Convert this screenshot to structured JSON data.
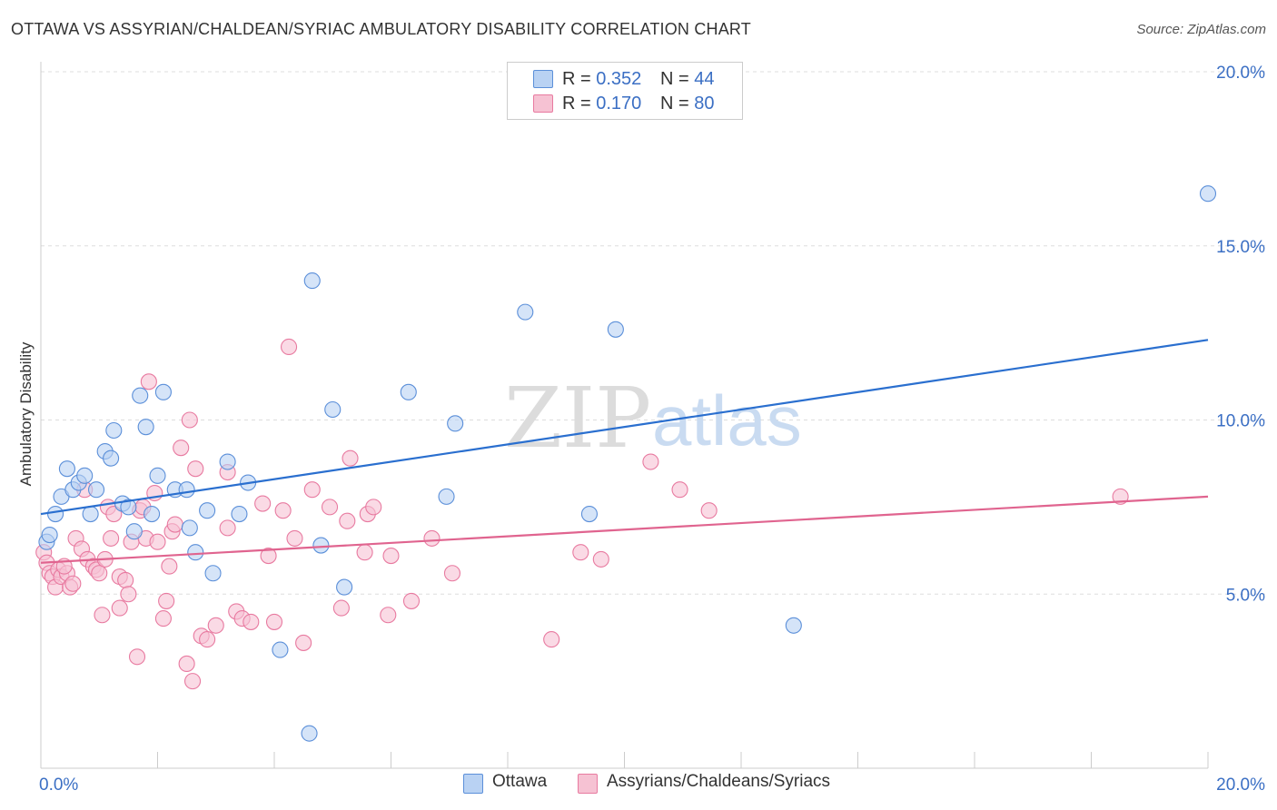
{
  "title": "OTTAWA VS ASSYRIAN/CHALDEAN/SYRIAC AMBULATORY DISABILITY CORRELATION CHART",
  "source": "Source: ZipAtlas.com",
  "watermark": {
    "zip": "ZIP",
    "atlas": "atlas"
  },
  "legend_top": [
    {
      "r_label": "R =",
      "r_value": "0.352",
      "n_label": "N =",
      "n_value": "44"
    },
    {
      "r_label": "R =",
      "r_value": "0.170",
      "n_label": "N =",
      "n_value": "80"
    }
  ],
  "legend_bottom": [
    "Ottawa",
    "Assyrians/Chaldeans/Syriacs"
  ],
  "colors": {
    "ottawa": "#5b8fd9",
    "ottawa_fill": "#b9d2f3",
    "assyrian": "#e87aa0",
    "assyrian_fill": "#f6c2d3",
    "ottawa_line": "#2a6fcf",
    "assyrian_line": "#e0648f",
    "tick_label": "#3b6fc4"
  },
  "chart_data": {
    "type": "scatter",
    "title": "OTTAWA VS ASSYRIAN/CHALDEAN/SYRIAC AMBULATORY DISABILITY CORRELATION CHART",
    "xlabel": "",
    "ylabel": "Ambulatory Disability",
    "xlim": [
      0,
      20
    ],
    "ylim": [
      0,
      20
    ],
    "x_tick_labels": [
      "0.0%",
      "20.0%"
    ],
    "y_ticks": [
      5,
      10,
      15,
      20
    ],
    "y_tick_labels": [
      "5.0%",
      "10.0%",
      "15.0%",
      "20.0%"
    ],
    "grid": true,
    "legend_placement": "top-center",
    "series": [
      {
        "name": "Ottawa",
        "r": 0.352,
        "n": 44,
        "trend": {
          "x": [
            0,
            20
          ],
          "y": [
            7.3,
            12.3
          ]
        },
        "points": [
          [
            0.1,
            6.5
          ],
          [
            0.15,
            6.7
          ],
          [
            0.25,
            7.3
          ],
          [
            0.35,
            7.8
          ],
          [
            0.45,
            8.6
          ],
          [
            0.55,
            8.0
          ],
          [
            0.65,
            8.2
          ],
          [
            0.75,
            8.4
          ],
          [
            0.85,
            7.3
          ],
          [
            0.95,
            8.0
          ],
          [
            1.1,
            9.1
          ],
          [
            1.2,
            8.9
          ],
          [
            1.25,
            9.7
          ],
          [
            1.4,
            7.6
          ],
          [
            1.5,
            7.5
          ],
          [
            1.6,
            6.8
          ],
          [
            1.7,
            10.7
          ],
          [
            1.8,
            9.8
          ],
          [
            1.9,
            7.3
          ],
          [
            2.0,
            8.4
          ],
          [
            2.1,
            10.8
          ],
          [
            2.3,
            8.0
          ],
          [
            2.5,
            8.0
          ],
          [
            2.55,
            6.9
          ],
          [
            2.65,
            6.2
          ],
          [
            2.85,
            7.4
          ],
          [
            2.95,
            5.6
          ],
          [
            3.2,
            8.8
          ],
          [
            3.4,
            7.3
          ],
          [
            3.55,
            8.2
          ],
          [
            4.1,
            3.4
          ],
          [
            4.6,
            1.0
          ],
          [
            4.65,
            14.0
          ],
          [
            4.8,
            6.4
          ],
          [
            5.0,
            10.3
          ],
          [
            5.2,
            5.2
          ],
          [
            6.3,
            10.8
          ],
          [
            6.95,
            7.8
          ],
          [
            7.1,
            9.9
          ],
          [
            8.3,
            13.1
          ],
          [
            9.4,
            7.3
          ],
          [
            9.85,
            12.6
          ],
          [
            12.9,
            4.1
          ],
          [
            20.0,
            16.5
          ]
        ]
      },
      {
        "name": "Assyrians/Chaldeans/Syriacs",
        "r": 0.17,
        "n": 80,
        "trend": {
          "x": [
            0,
            20
          ],
          "y": [
            5.9,
            7.8
          ]
        },
        "points": [
          [
            0.05,
            6.2
          ],
          [
            0.1,
            5.9
          ],
          [
            0.15,
            5.6
          ],
          [
            0.2,
            5.5
          ],
          [
            0.25,
            5.2
          ],
          [
            0.3,
            5.7
          ],
          [
            0.35,
            5.5
          ],
          [
            0.45,
            5.6
          ],
          [
            0.5,
            5.2
          ],
          [
            0.55,
            5.3
          ],
          [
            0.6,
            6.6
          ],
          [
            0.7,
            6.3
          ],
          [
            0.75,
            8.0
          ],
          [
            0.8,
            6.0
          ],
          [
            0.9,
            5.8
          ],
          [
            0.95,
            5.7
          ],
          [
            1.0,
            5.6
          ],
          [
            1.05,
            4.4
          ],
          [
            1.15,
            7.5
          ],
          [
            1.2,
            6.6
          ],
          [
            1.25,
            7.3
          ],
          [
            1.35,
            4.6
          ],
          [
            1.35,
            5.5
          ],
          [
            1.45,
            5.4
          ],
          [
            1.5,
            5.0
          ],
          [
            1.55,
            6.5
          ],
          [
            1.65,
            3.2
          ],
          [
            1.7,
            7.4
          ],
          [
            1.75,
            7.5
          ],
          [
            1.8,
            6.6
          ],
          [
            1.85,
            11.1
          ],
          [
            1.95,
            7.9
          ],
          [
            2.0,
            6.5
          ],
          [
            2.1,
            4.3
          ],
          [
            2.15,
            4.8
          ],
          [
            2.2,
            5.8
          ],
          [
            2.25,
            6.8
          ],
          [
            2.3,
            7.0
          ],
          [
            2.4,
            9.2
          ],
          [
            2.5,
            3.0
          ],
          [
            2.55,
            10.0
          ],
          [
            2.6,
            2.5
          ],
          [
            2.65,
            8.6
          ],
          [
            2.75,
            3.8
          ],
          [
            2.85,
            3.7
          ],
          [
            3.0,
            4.1
          ],
          [
            3.2,
            6.9
          ],
          [
            3.2,
            8.5
          ],
          [
            3.35,
            4.5
          ],
          [
            3.45,
            4.3
          ],
          [
            3.6,
            4.2
          ],
          [
            3.8,
            7.6
          ],
          [
            3.9,
            6.1
          ],
          [
            4.0,
            4.2
          ],
          [
            4.15,
            7.4
          ],
          [
            4.25,
            12.1
          ],
          [
            4.35,
            6.6
          ],
          [
            4.5,
            3.6
          ],
          [
            4.65,
            8.0
          ],
          [
            4.95,
            7.5
          ],
          [
            5.15,
            4.6
          ],
          [
            5.25,
            7.1
          ],
          [
            5.3,
            8.9
          ],
          [
            5.55,
            6.2
          ],
          [
            5.6,
            7.3
          ],
          [
            5.7,
            7.5
          ],
          [
            5.95,
            4.4
          ],
          [
            6.0,
            6.1
          ],
          [
            6.35,
            4.8
          ],
          [
            6.7,
            6.6
          ],
          [
            7.05,
            5.6
          ],
          [
            8.75,
            3.7
          ],
          [
            9.25,
            6.2
          ],
          [
            9.6,
            6.0
          ],
          [
            10.45,
            8.8
          ],
          [
            10.95,
            8.0
          ],
          [
            11.45,
            7.4
          ],
          [
            18.5,
            7.8
          ],
          [
            0.4,
            5.8
          ],
          [
            1.1,
            6.0
          ]
        ]
      }
    ]
  }
}
